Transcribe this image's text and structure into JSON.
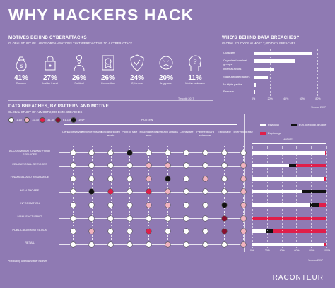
{
  "title": "WHY HACKERS HACK",
  "motives": {
    "heading": "MOTIVES BEHIND CYBERATTACKS",
    "subheading": "GLOBAL STUDY OF LARGE ORGANISATIONS THAT WERE VICTIMS TO A CYBERATTACK",
    "source": "Thycotic 2017",
    "items": [
      {
        "value": "41%",
        "label": "Ransom",
        "icon": "moneybag-icon"
      },
      {
        "value": "27%",
        "label": "Insider threat",
        "icon": "lock-icon"
      },
      {
        "value": "26%",
        "label": "Political",
        "icon": "figure-icon"
      },
      {
        "value": "26%",
        "label": "Competition",
        "icon": "award-icon"
      },
      {
        "value": "24%",
        "label": "Cyberwar",
        "icon": "shield-icon"
      },
      {
        "value": "20%",
        "label": "Angry user",
        "icon": "angry-face-icon"
      },
      {
        "value": "11%",
        "label": "Motive unknown",
        "icon": "question-head-icon"
      }
    ]
  },
  "breaches_chart": {
    "heading": "WHO'S BEHIND DATA BREACHES?",
    "subheading": "GLOBAL STUDY OF ALMOST 2,000 DATA BREACHES",
    "source": "Verizon 2017",
    "categories": [
      "Outsiders",
      "Organised criminal groups",
      "Internal actors",
      "State-affiliated actors",
      "Multiple parties",
      "Partners"
    ],
    "values": [
      73,
      51,
      25,
      18,
      3,
      2
    ],
    "ticks": [
      "0%",
      "20%",
      "40%",
      "60%",
      "80%"
    ],
    "xlim": [
      0,
      85
    ]
  },
  "pattern": {
    "heading": "DATA BREACHES, BY PATTERN AND MOTIVE",
    "subheading": "GLOBAL STUDY OF ALMOST 2,000 DATA BREACHES",
    "pattern_label": "PATTERN",
    "motive_label": "MOTIVE*",
    "size_legend": [
      {
        "label": "1-10",
        "color": "#ffffff"
      },
      {
        "label": "11-30",
        "color": "#f2b3c0"
      },
      {
        "label": "31-60",
        "color": "#e01e4a"
      },
      {
        "label": "61-100",
        "color": "#8a1030"
      },
      {
        "label": "101+",
        "color": "#111111"
      }
    ],
    "motive_legend": [
      {
        "label": "Financial",
        "color": "#ffffff"
      },
      {
        "label": "Fun, ideology, grudge",
        "color": "#111111"
      },
      {
        "label": "Espionage",
        "color": "#e01e4a"
      }
    ],
    "patterns": [
      "Denial of service",
      "Privilege misuse",
      "Lost and stolen assets",
      "Point of sale",
      "Miscellaneous error",
      "Web app attacks",
      "Crimeware",
      "Payment card skimmers",
      "Espionage",
      "Everything else"
    ],
    "industries": [
      "ACCOMMODATION AND FOOD SERVICES",
      "EDUCATIONAL SERVICES",
      "FINANCIAL AND INSURANCE",
      "HEALTHCARE",
      "INFORMATION",
      "MANUFACTURING",
      "PUBLIC ADMINISTRATION",
      "RETAIL"
    ],
    "matrix": [
      [
        0,
        0,
        0,
        4,
        0,
        0,
        0,
        0,
        0,
        0
      ],
      [
        0,
        0,
        0,
        0,
        1,
        1,
        0,
        0,
        0,
        1
      ],
      [
        0,
        0,
        0,
        0,
        1,
        4,
        0,
        1,
        0,
        1
      ],
      [
        0,
        4,
        2,
        0,
        2,
        1,
        0,
        0,
        0,
        1
      ],
      [
        0,
        0,
        0,
        0,
        1,
        1,
        0,
        0,
        4,
        1
      ],
      [
        0,
        0,
        0,
        0,
        0,
        0,
        0,
        0,
        3,
        1
      ],
      [
        0,
        1,
        0,
        0,
        2,
        0,
        0,
        0,
        3,
        1
      ],
      [
        0,
        0,
        0,
        0,
        0,
        1,
        0,
        0,
        0,
        1
      ]
    ],
    "motive_chart": {
      "ticks": [
        "0%",
        "20%",
        "40%",
        "60%",
        "80%",
        "100%"
      ],
      "rows": [
        {
          "financial": 99,
          "fun": 0,
          "espionage": 1
        },
        {
          "financial": 50,
          "fun": 10,
          "espionage": 40
        },
        {
          "financial": 97,
          "fun": 0,
          "espionage": 3
        },
        {
          "financial": 67,
          "fun": 33,
          "espionage": 0
        },
        {
          "financial": 78,
          "fun": 13,
          "espionage": 9
        },
        {
          "financial": 0,
          "fun": 0,
          "espionage": 100
        },
        {
          "financial": 18,
          "fun": 10,
          "espionage": 72
        },
        {
          "financial": 97,
          "fun": 0,
          "espionage": 3
        }
      ]
    },
    "footnote": "*Excluding unknown/other motives",
    "source": "Verizon 2017"
  },
  "brand": "RACONTEUR"
}
